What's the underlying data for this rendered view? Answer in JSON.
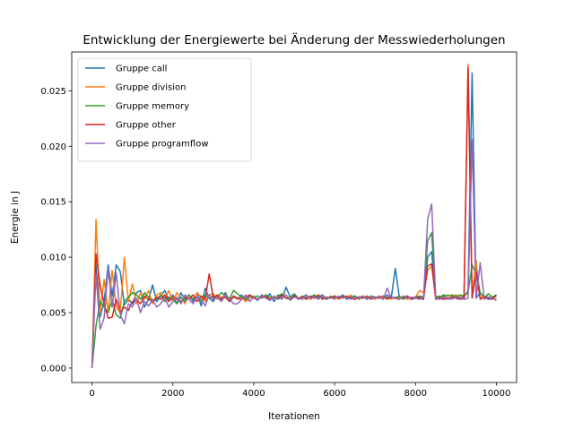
{
  "chart_data": {
    "type": "line",
    "title": "Entwicklung der Energiewerte bei Änderung der Messwiederholungen",
    "xlabel": "Iterationen",
    "ylabel": "Energie in J",
    "xlim": [
      -500,
      10500
    ],
    "ylim": [
      -0.0013,
      0.0285
    ],
    "xticks": [
      0,
      2000,
      4000,
      6000,
      8000,
      10000
    ],
    "xtick_labels": [
      "0",
      "2000",
      "4000",
      "6000",
      "8000",
      "10000"
    ],
    "yticks": [
      0,
      0.005,
      0.01,
      0.015,
      0.02,
      0.025
    ],
    "ytick_labels": [
      "0.000",
      "0.005",
      "0.010",
      "0.015",
      "0.020",
      "0.025"
    ],
    "grid": false,
    "legend_position": "top-left",
    "x": [
      1,
      100,
      200,
      300,
      400,
      500,
      600,
      700,
      800,
      900,
      1000,
      1100,
      1200,
      1300,
      1400,
      1500,
      1600,
      1700,
      1800,
      1900,
      2000,
      2100,
      2200,
      2300,
      2400,
      2500,
      2600,
      2700,
      2800,
      2900,
      3000,
      3100,
      3200,
      3300,
      3400,
      3500,
      3600,
      3700,
      3800,
      3900,
      4000,
      4100,
      4200,
      4300,
      4400,
      4500,
      4600,
      4700,
      4800,
      4900,
      5000,
      5100,
      5200,
      5300,
      5400,
      5500,
      5600,
      5700,
      5800,
      5900,
      6000,
      6100,
      6200,
      6300,
      6400,
      6500,
      6600,
      6700,
      6800,
      6900,
      7000,
      7100,
      7200,
      7300,
      7400,
      7500,
      7600,
      7700,
      7800,
      7900,
      8000,
      8100,
      8200,
      8300,
      8400,
      8500,
      8600,
      8700,
      8800,
      8900,
      9000,
      9100,
      9200,
      9300,
      9400,
      9500,
      9600,
      9700,
      9800,
      9900,
      10000
    ],
    "series": [
      {
        "name": "Gruppe call",
        "color": "#1f77b4",
        "values": [
          0,
          0.0093,
          0.0046,
          0.006,
          0.0093,
          0.0065,
          0.0093,
          0.0087,
          0.0057,
          0.0062,
          0.0058,
          0.0068,
          0.007,
          0.0055,
          0.0062,
          0.0075,
          0.006,
          0.0065,
          0.007,
          0.0062,
          0.0066,
          0.0058,
          0.0068,
          0.0062,
          0.0066,
          0.006,
          0.0068,
          0.0056,
          0.0072,
          0.0063,
          0.006,
          0.0066,
          0.0062,
          0.0068,
          0.006,
          0.0064,
          0.0062,
          0.0066,
          0.0061,
          0.0065,
          0.0064,
          0.0061,
          0.0066,
          0.0063,
          0.0067,
          0.006,
          0.0066,
          0.0062,
          0.0073,
          0.0064,
          0.0067,
          0.0063,
          0.0064,
          0.0066,
          0.0062,
          0.0065,
          0.0064,
          0.0066,
          0.0062,
          0.0064,
          0.0065,
          0.0063,
          0.0066,
          0.0062,
          0.0064,
          0.0065,
          0.0063,
          0.0064,
          0.0062,
          0.0065,
          0.0063,
          0.0064,
          0.0062,
          0.0066,
          0.0063,
          0.009,
          0.0064,
          0.0063,
          0.0065,
          0.0062,
          0.0063,
          0.0064,
          0.0063,
          0.01,
          0.0105,
          0.0064,
          0.0063,
          0.0065,
          0.0062,
          0.0064,
          0.0065,
          0.0063,
          0.0064,
          0.007,
          0.0266,
          0.0063,
          0.0068,
          0.0064,
          0.0062,
          0.0063,
          0.0065
        ]
      },
      {
        "name": "Gruppe division",
        "color": "#ff7f0e",
        "values": [
          0,
          0.0134,
          0.005,
          0.008,
          0.005,
          0.0088,
          0.0055,
          0.005,
          0.01,
          0.006,
          0.0076,
          0.0058,
          0.0068,
          0.0062,
          0.007,
          0.0058,
          0.0066,
          0.0068,
          0.0062,
          0.007,
          0.006,
          0.0068,
          0.0064,
          0.0058,
          0.0066,
          0.0062,
          0.0068,
          0.0064,
          0.006,
          0.0066,
          0.0067,
          0.0062,
          0.0064,
          0.0066,
          0.0061,
          0.0065,
          0.0062,
          0.0064,
          0.006,
          0.0063,
          0.0065,
          0.0062,
          0.0064,
          0.0066,
          0.0061,
          0.0064,
          0.0062,
          0.0065,
          0.0063,
          0.0064,
          0.0066,
          0.0062,
          0.0064,
          0.0065,
          0.0062,
          0.0064,
          0.0066,
          0.0062,
          0.0064,
          0.0063,
          0.0065,
          0.0062,
          0.0064,
          0.0063,
          0.0066,
          0.0062,
          0.0064,
          0.0065,
          0.0063,
          0.0064,
          0.0062,
          0.0065,
          0.0063,
          0.0064,
          0.0062,
          0.0064,
          0.0063,
          0.0065,
          0.0062,
          0.0063,
          0.0064,
          0.007,
          0.0068,
          0.0088,
          0.0092,
          0.0064,
          0.0065,
          0.0063,
          0.0066,
          0.0065,
          0.0066,
          0.0064,
          0.0066,
          0.0274,
          0.0064,
          0.0097,
          0.0063,
          0.0065,
          0.0064,
          0.0063,
          0.0062
        ]
      },
      {
        "name": "Gruppe memory",
        "color": "#2ca02c",
        "values": [
          0,
          0.0038,
          0.006,
          0.0055,
          0.005,
          0.0062,
          0.0048,
          0.0045,
          0.006,
          0.0064,
          0.0068,
          0.0066,
          0.0062,
          0.0068,
          0.0064,
          0.006,
          0.0062,
          0.0066,
          0.006,
          0.0064,
          0.0062,
          0.0058,
          0.0064,
          0.006,
          0.0066,
          0.0062,
          0.0064,
          0.006,
          0.0066,
          0.0063,
          0.0065,
          0.0064,
          0.0068,
          0.0066,
          0.0062,
          0.007,
          0.0067,
          0.0064,
          0.0062,
          0.0066,
          0.0064,
          0.0065,
          0.0063,
          0.0066,
          0.0064,
          0.0063,
          0.0065,
          0.0067,
          0.0063,
          0.0064,
          0.0066,
          0.0062,
          0.0065,
          0.0063,
          0.0064,
          0.0066,
          0.0063,
          0.0064,
          0.0062,
          0.0065,
          0.0063,
          0.0064,
          0.0065,
          0.0063,
          0.0064,
          0.0065,
          0.0062,
          0.0064,
          0.0063,
          0.0065,
          0.0064,
          0.0063,
          0.0065,
          0.0063,
          0.0064,
          0.0063,
          0.0065,
          0.0062,
          0.0064,
          0.0063,
          0.0064,
          0.0065,
          0.0064,
          0.0115,
          0.0122,
          0.0065,
          0.0064,
          0.0066,
          0.0065,
          0.0066,
          0.0064,
          0.0066,
          0.0065,
          0.0068,
          0.0093,
          0.0085,
          0.0068,
          0.0063,
          0.0067,
          0.0064,
          0.0066
        ]
      },
      {
        "name": "Gruppe other",
        "color": "#d62728",
        "values": [
          0,
          0.0103,
          0.0075,
          0.0058,
          0.0045,
          0.0046,
          0.0062,
          0.005,
          0.0055,
          0.0052,
          0.006,
          0.0062,
          0.0058,
          0.0065,
          0.0062,
          0.006,
          0.0064,
          0.0062,
          0.0066,
          0.006,
          0.0064,
          0.0062,
          0.006,
          0.0064,
          0.0062,
          0.0066,
          0.006,
          0.0065,
          0.0062,
          0.0085,
          0.0063,
          0.0066,
          0.0062,
          0.0064,
          0.006,
          0.0065,
          0.0063,
          0.0062,
          0.0064,
          0.0066,
          0.0063,
          0.0062,
          0.0064,
          0.0065,
          0.0062,
          0.0064,
          0.0063,
          0.0066,
          0.0063,
          0.0062,
          0.0065,
          0.0063,
          0.0064,
          0.0062,
          0.0065,
          0.0063,
          0.0066,
          0.0062,
          0.0064,
          0.0063,
          0.0065,
          0.0063,
          0.0064,
          0.0065,
          0.0063,
          0.0062,
          0.0064,
          0.0063,
          0.0065,
          0.0062,
          0.0064,
          0.0063,
          0.0065,
          0.0062,
          0.0064,
          0.0063,
          0.0062,
          0.0064,
          0.0065,
          0.0062,
          0.0064,
          0.0063,
          0.0062,
          0.0092,
          0.0094,
          0.0062,
          0.0063,
          0.0062,
          0.0063,
          0.0064,
          0.0063,
          0.0062,
          0.0063,
          0.0271,
          0.0063,
          0.0087,
          0.0062,
          0.0064,
          0.0063,
          0.0062,
          0.0066
        ]
      },
      {
        "name": "Gruppe programflow",
        "color": "#9467bd",
        "values": [
          0,
          0.0085,
          0.0035,
          0.0045,
          0.009,
          0.0055,
          0.0086,
          0.0048,
          0.004,
          0.0058,
          0.0055,
          0.0063,
          0.005,
          0.006,
          0.0056,
          0.0062,
          0.0055,
          0.0058,
          0.0064,
          0.0055,
          0.006,
          0.0064,
          0.0058,
          0.0066,
          0.0062,
          0.0058,
          0.0064,
          0.0062,
          0.0056,
          0.0066,
          0.0062,
          0.0064,
          0.006,
          0.0066,
          0.0063,
          0.0058,
          0.0058,
          0.0062,
          0.0066,
          0.006,
          0.0064,
          0.0062,
          0.0065,
          0.0063,
          0.0061,
          0.0065,
          0.0062,
          0.0064,
          0.0066,
          0.0061,
          0.0064,
          0.0063,
          0.0062,
          0.0065,
          0.0063,
          0.0064,
          0.0062,
          0.0065,
          0.0063,
          0.0064,
          0.0062,
          0.0065,
          0.0063,
          0.0064,
          0.0062,
          0.0064,
          0.0063,
          0.0065,
          0.0062,
          0.0064,
          0.0063,
          0.0065,
          0.0062,
          0.0072,
          0.0063,
          0.0064,
          0.0062,
          0.0065,
          0.0063,
          0.0064,
          0.0063,
          0.0062,
          0.0064,
          0.0134,
          0.0148,
          0.0063,
          0.0062,
          0.0064,
          0.0063,
          0.0062,
          0.0064,
          0.0063,
          0.0062,
          0.0063,
          0.0206,
          0.0063,
          0.0095,
          0.0062,
          0.0064,
          0.0063,
          0.0061
        ]
      }
    ]
  }
}
